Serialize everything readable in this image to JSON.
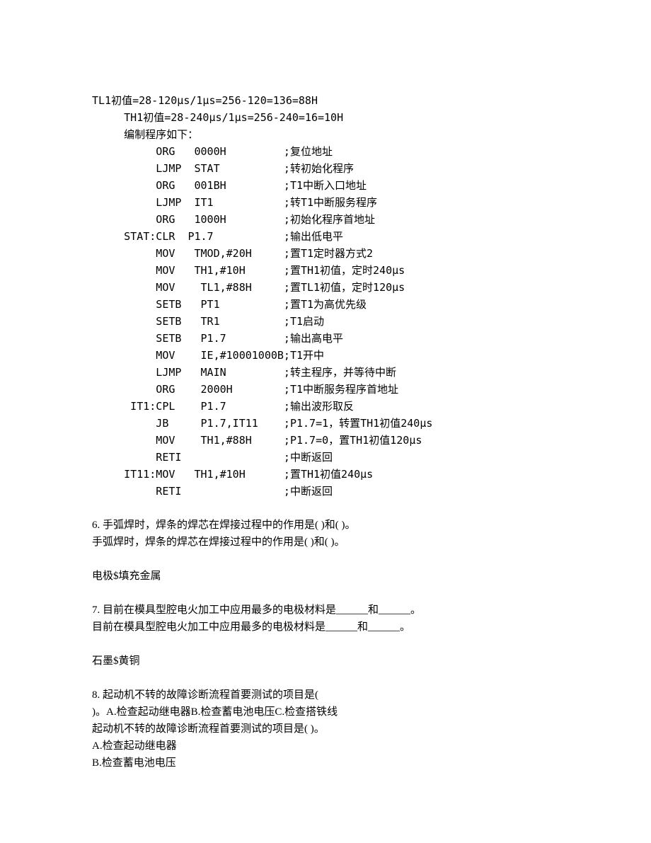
{
  "header": {
    "l1": "TL1初值=28-120μs/1μs=256-120=136=88H",
    "l2": "     TH1初值=28-240μs/1μs=256-240=16=10H",
    "l3": "     编制程序如下："
  },
  "code": [
    "          ORG   0000H         ;复位地址",
    "          LJMP  STAT          ;转初始化程序",
    "          ORG   001BH         ;T1中断入口地址",
    "          LJMP  IT1           ;转T1中断服务程序",
    "          ORG   1000H         ;初始化程序首地址",
    "     STAT:CLR  P1.7           ;输出低电平",
    "          MOV   TMOD,#20H     ;置T1定时器方式2",
    "          MOV   TH1,#10H      ;置TH1初值，定时240μs",
    "          MOV    TL1,#88H     ;置TL1初值，定时120μs",
    "          SETB   PT1          ;置T1为高优先级",
    "          SETB   TR1          ;T1启动",
    "          SETB   P1.7         ;输出高电平",
    "          MOV    IE,#10001000B;T1开中",
    "          LJMP   MAIN         ;转主程序，并等待中断",
    "          ORG    2000H        ;T1中断服务程序首地址",
    "      IT1:CPL    P1.7         ;输出波形取反",
    "          JB     P1.7,IT11    ;P1.7=1，转置TH1初值240μs",
    "          MOV    TH1,#88H     ;P1.7=0，置TH1初值120μs",
    "          RETI                ;中断返回",
    "     IT11:MOV   TH1,#10H      ;置TH1初值240μs",
    "          RETI                ;中断返回"
  ],
  "q6": {
    "l1": "6. 手弧焊时，焊条的焊芯在焊接过程中的作用是(  )和(  )。",
    "l2": "手弧焊时，焊条的焊芯在焊接过程中的作用是(  )和(  )。",
    "ans": "电极$填充金属"
  },
  "q7": {
    "l1": "7. 目前在模具型腔电火加工中应用最多的电极材料是______和______。",
    "l2": "目前在模具型腔电火加工中应用最多的电极材料是______和______。",
    "ans": "石墨$黄铜"
  },
  "q8": {
    "l1": "8. 起动机不转的故障诊断流程首要测试的项目是(",
    "l2": ")。A.检查起动继电器B.检查蓄电池电压C.检查搭铁线",
    "l3": "起动机不转的故障诊断流程首要测试的项目是( )。",
    "optA": "A.检查起动继电器",
    "optB": "B.检查蓄电池电压"
  }
}
